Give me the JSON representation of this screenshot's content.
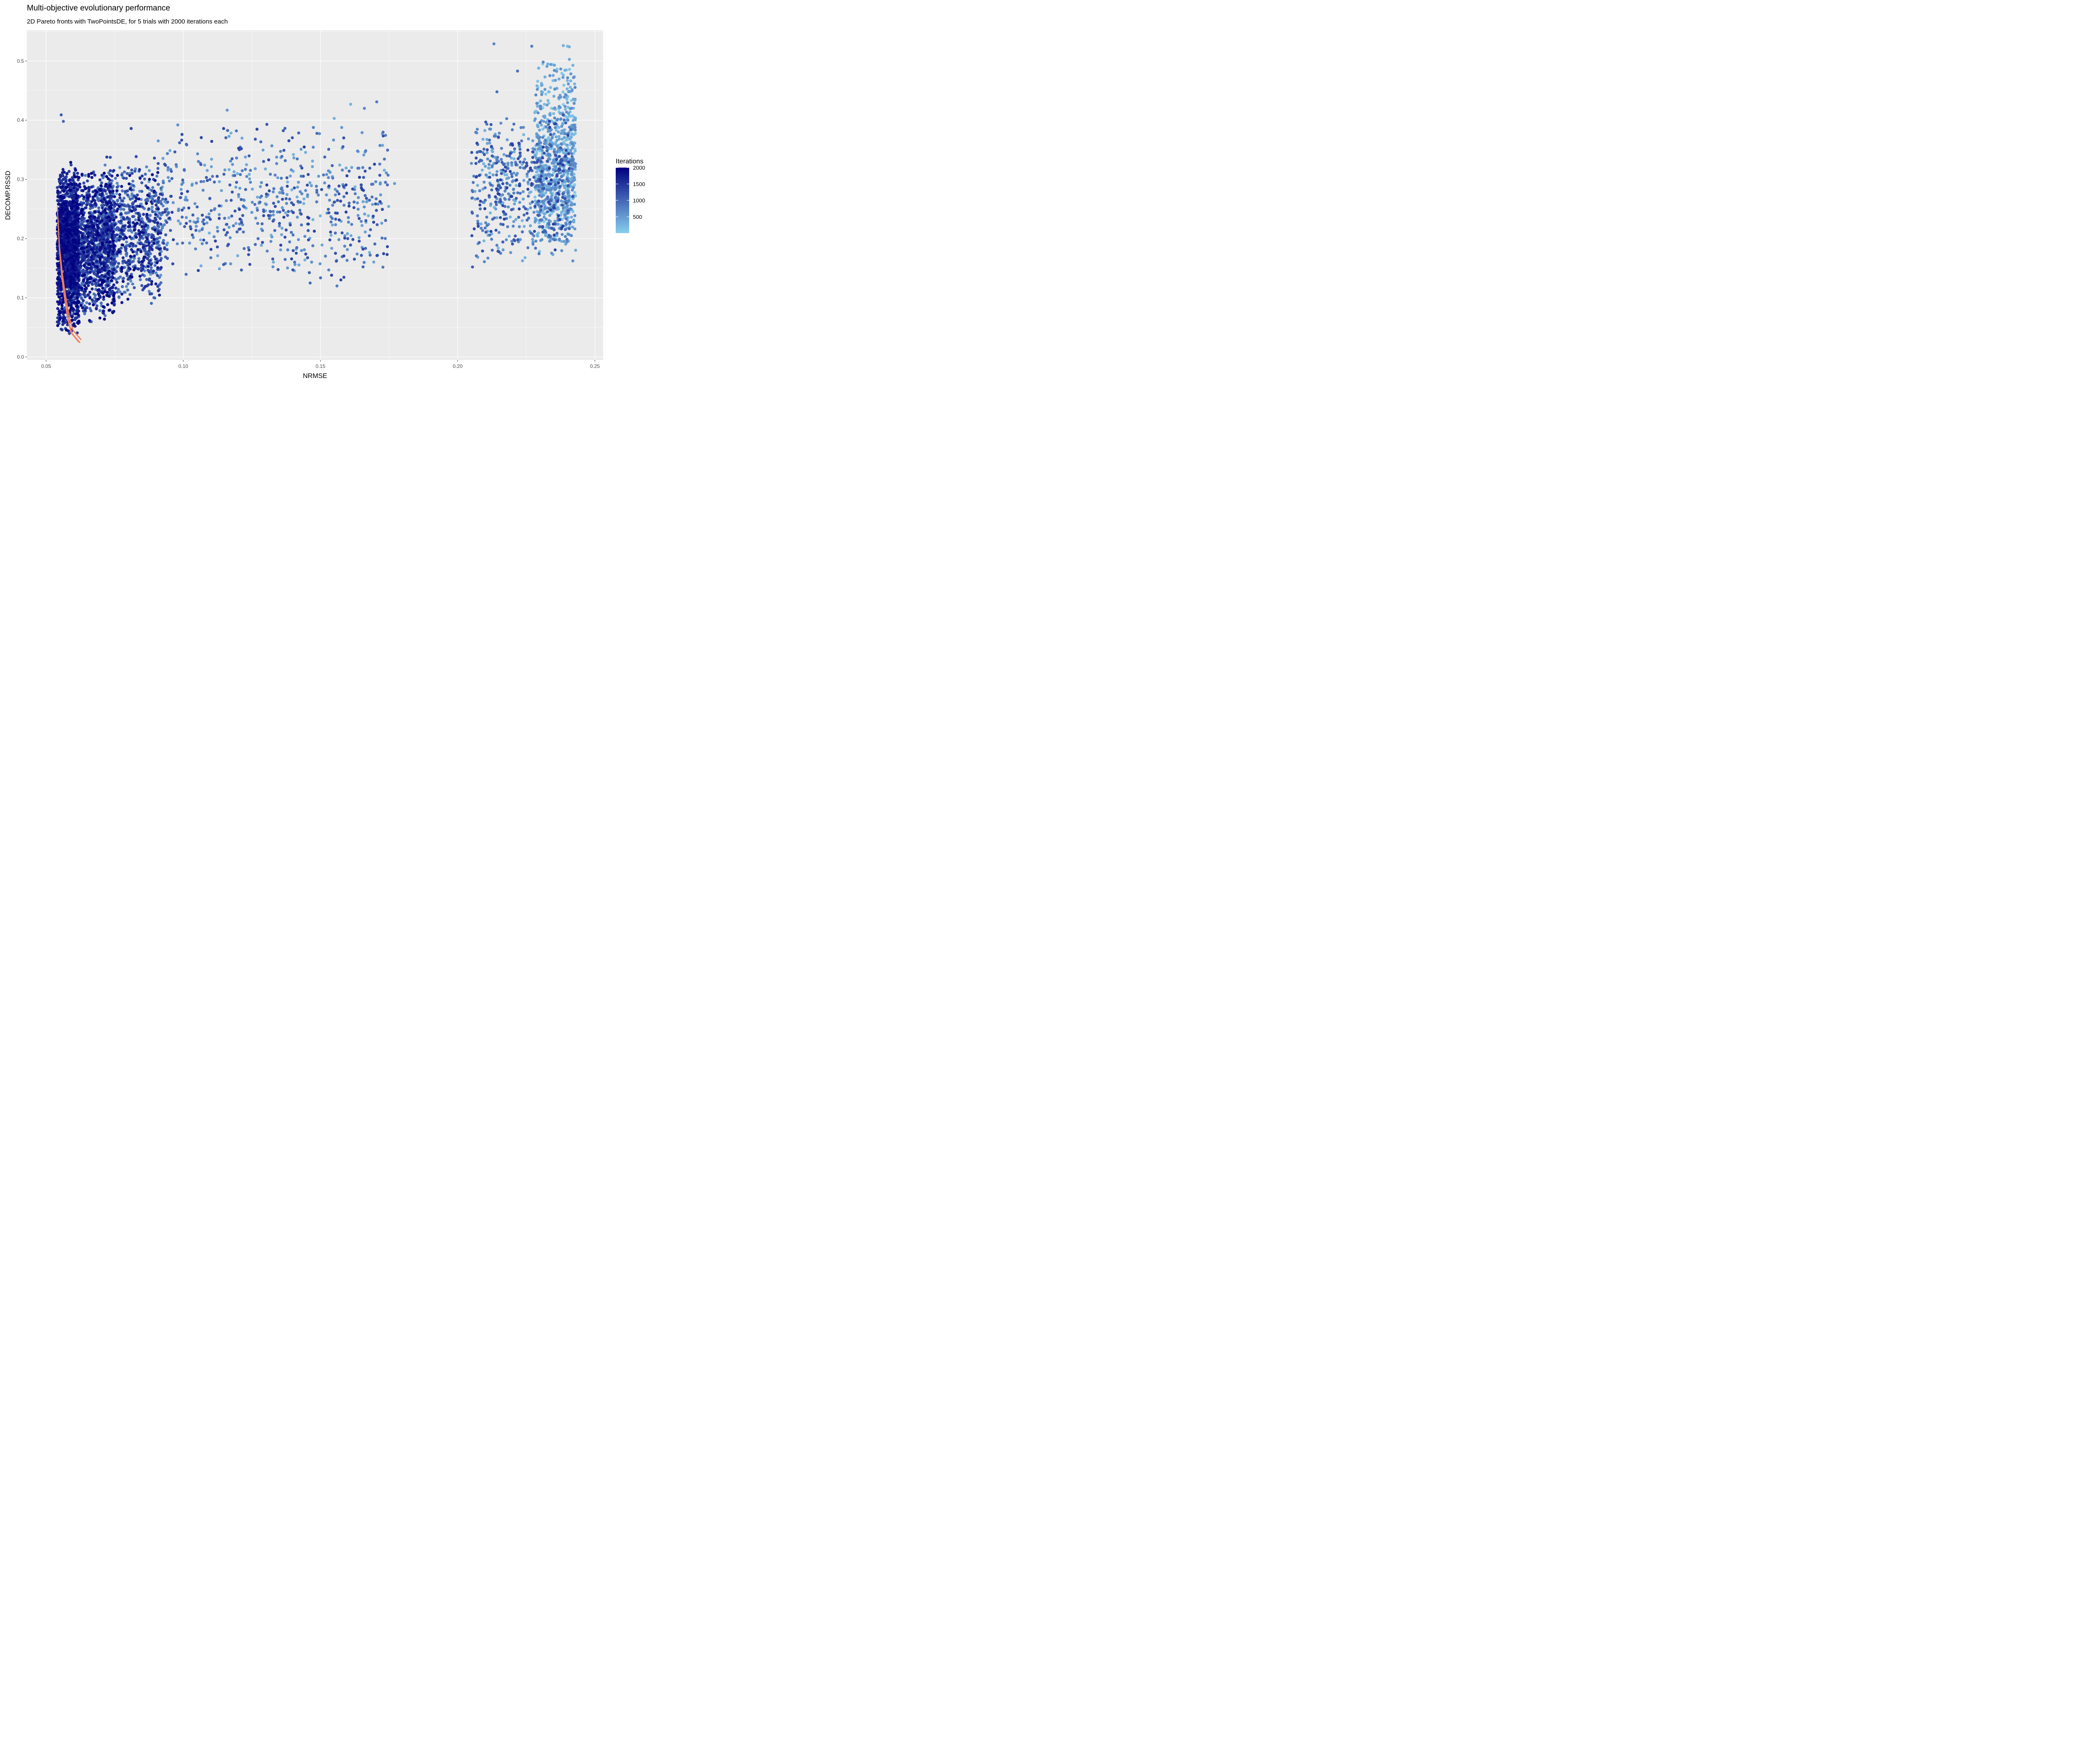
{
  "chart_data": {
    "type": "scatter",
    "title": "Multi-objective evolutionary performance",
    "subtitle": "2D Pareto fronts with TwoPointsDE, for 5 trials with 2000 iterations each",
    "xlabel": "NRMSE",
    "ylabel": "DECOMP.RSSD",
    "xlim": [
      0.043,
      0.253
    ],
    "ylim": [
      -0.005,
      0.552
    ],
    "x_ticks": [
      "0.05",
      "0.10",
      "0.15",
      "0.20",
      "0.25"
    ],
    "x_tick_values": [
      0.05,
      0.1,
      0.15,
      0.2,
      0.25
    ],
    "y_ticks": [
      "0.0",
      "0.1",
      "0.2",
      "0.3",
      "0.4",
      "0.5"
    ],
    "y_tick_values": [
      0.0,
      0.1,
      0.2,
      0.3,
      0.4,
      0.5
    ],
    "grid": true,
    "background": "#ebebeb",
    "legend": {
      "title": "Iterations",
      "position": "right",
      "labels": [
        "2000",
        "1500",
        "1000",
        "500"
      ],
      "values": [
        2000,
        1500,
        1000,
        500
      ],
      "range": [
        1,
        2000
      ],
      "color_low": "#87ceeb",
      "color_high": "#000080"
    },
    "pareto_line_color": "#f08060",
    "pareto_front": [
      {
        "x": 0.0541,
        "y": 0.252
      },
      {
        "x": 0.0544,
        "y": 0.225
      },
      {
        "x": 0.0548,
        "y": 0.185
      },
      {
        "x": 0.0552,
        "y": 0.165
      },
      {
        "x": 0.0557,
        "y": 0.14
      },
      {
        "x": 0.0563,
        "y": 0.118
      },
      {
        "x": 0.0569,
        "y": 0.098
      },
      {
        "x": 0.0576,
        "y": 0.078
      },
      {
        "x": 0.0584,
        "y": 0.058
      },
      {
        "x": 0.0594,
        "y": 0.042
      },
      {
        "x": 0.061,
        "y": 0.033
      },
      {
        "x": 0.0623,
        "y": 0.026
      }
    ],
    "clusters": [
      {
        "name": "",
        "x": [
          0.054,
          0.062
        ],
        "y": [
          0.03,
          0.33
        ],
        "n": 1400,
        "iter": [
          1300,
          2000
        ]
      },
      {
        "name": "",
        "x": [
          0.055,
          0.075
        ],
        "y": [
          0.05,
          0.32
        ],
        "n": 1300,
        "iter": [
          700,
          2000
        ]
      },
      {
        "name": "",
        "x": [
          0.062,
          0.092
        ],
        "y": [
          0.08,
          0.33
        ],
        "n": 800,
        "iter": [
          600,
          1900
        ]
      },
      {
        "name": "",
        "x": [
          0.07,
          0.095
        ],
        "y": [
          0.1,
          0.35
        ],
        "n": 250,
        "iter": [
          400,
          1500
        ]
      },
      {
        "name": "",
        "x": [
          0.09,
          0.175
        ],
        "y": [
          0.12,
          0.4
        ],
        "n": 650,
        "iter": [
          250,
          1400
        ]
      },
      {
        "name": "",
        "x": [
          0.205,
          0.242
        ],
        "y": [
          0.15,
          0.42
        ],
        "n": 650,
        "iter": [
          200,
          1400
        ]
      },
      {
        "name": "",
        "x": [
          0.228,
          0.243
        ],
        "y": [
          0.16,
          0.51
        ],
        "n": 750,
        "iter": [
          1,
          700
        ]
      }
    ],
    "outliers": [
      {
        "x": 0.0555,
        "y": 0.409,
        "iter": 1100
      },
      {
        "x": 0.0563,
        "y": 0.398,
        "iter": 1000
      },
      {
        "x": 0.081,
        "y": 0.386,
        "iter": 1300
      },
      {
        "x": 0.098,
        "y": 0.392,
        "iter": 600
      },
      {
        "x": 0.116,
        "y": 0.417,
        "iter": 500
      },
      {
        "x": 0.155,
        "y": 0.403,
        "iter": 300
      },
      {
        "x": 0.161,
        "y": 0.427,
        "iter": 250
      },
      {
        "x": 0.166,
        "y": 0.42,
        "iter": 700
      },
      {
        "x": 0.1705,
        "y": 0.431,
        "iter": 800
      },
      {
        "x": 0.1725,
        "y": 0.377,
        "iter": 300
      },
      {
        "x": 0.177,
        "y": 0.293,
        "iter": 500
      },
      {
        "x": 0.156,
        "y": 0.12,
        "iter": 800
      },
      {
        "x": 0.2054,
        "y": 0.152,
        "iter": 1100
      },
      {
        "x": 0.2132,
        "y": 0.529,
        "iter": 700
      },
      {
        "x": 0.227,
        "y": 0.525,
        "iter": 800
      },
      {
        "x": 0.2385,
        "y": 0.526,
        "iter": 300
      },
      {
        "x": 0.24,
        "y": 0.525,
        "iter": 200
      },
      {
        "x": 0.2407,
        "y": 0.524,
        "iter": 300
      },
      {
        "x": 0.2218,
        "y": 0.483,
        "iter": 900
      },
      {
        "x": 0.2295,
        "y": 0.488,
        "iter": 300
      },
      {
        "x": 0.2143,
        "y": 0.448,
        "iter": 900
      }
    ]
  }
}
